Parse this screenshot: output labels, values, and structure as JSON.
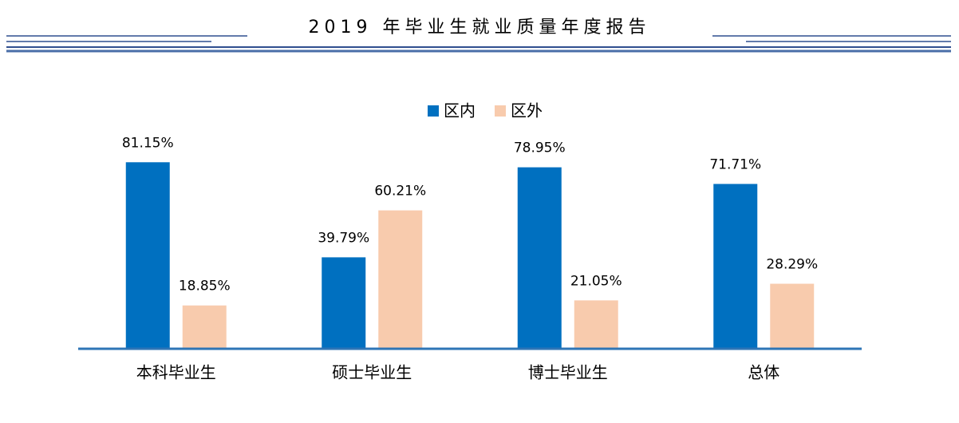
{
  "header": {
    "title": "2019 年毕业生就业质量年度报告"
  },
  "chart_data": {
    "type": "bar",
    "categories": [
      "本科毕业生",
      "硕士毕业生",
      "博士毕业生",
      "总体"
    ],
    "series": [
      {
        "name": "区内",
        "color": "#0070c0",
        "values": [
          81.15,
          39.79,
          78.95,
          71.71
        ],
        "value_labels": [
          "81.15%",
          "39.79%",
          "78.95%",
          "71.71%"
        ]
      },
      {
        "name": "区外",
        "color": "#f8cbad",
        "values": [
          18.85,
          60.21,
          21.05,
          28.29
        ],
        "value_labels": [
          "18.85%",
          "60.21%",
          "21.05%",
          "28.29%"
        ]
      }
    ],
    "ylim": [
      0,
      100
    ]
  }
}
